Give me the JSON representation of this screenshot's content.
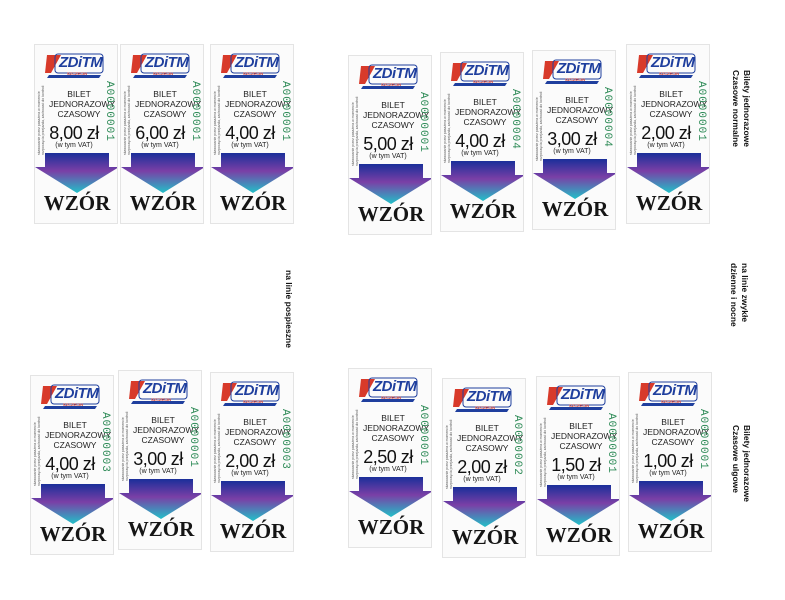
{
  "ticket_common": {
    "brand": "ZDiTM",
    "brand_sub": "SZCZECIN",
    "title_lines": [
      "BILET",
      "JEDNORAZOWY",
      "CZASOWY"
    ],
    "vat_note": "(w tym VAT)",
    "watermark": "WZÓR",
    "side_note": "skasowanie przez pasażera w momencie rozpoczęcia przejazdu, zachować do kontroli"
  },
  "colors": {
    "brand_blue": "#1f3f9e",
    "brand_red": "#d83a2a",
    "serial_green": "#2e8b57",
    "arrow_top": "#1a2f9a",
    "arrow_mid": "#7a3fa6",
    "arrow_bottom": "#22c0c8"
  },
  "tickets": [
    {
      "price": "8,00 zł",
      "serial": "A0000001"
    },
    {
      "price": "6,00 zł",
      "serial": "A0000001"
    },
    {
      "price": "4,00 zł",
      "serial": "A0000001"
    },
    {
      "price": "5,00 zł",
      "serial": "A0000001"
    },
    {
      "price": "4,00 zł",
      "serial": "A0000004"
    },
    {
      "price": "3,00 zł",
      "serial": "A0000004"
    },
    {
      "price": "2,00 zł",
      "serial": "A0000001"
    },
    {
      "price": "4,00 zł",
      "serial": "A0000003"
    },
    {
      "price": "3,00 zł",
      "serial": "A0000001"
    },
    {
      "price": "2,00 zł",
      "serial": "A0000003"
    },
    {
      "price": "2,50 zł",
      "serial": "A0000001"
    },
    {
      "price": "2,00 zł",
      "serial": "A0000002"
    },
    {
      "price": "1,50 zł",
      "serial": "A0000001"
    },
    {
      "price": "1,00 zł",
      "serial": "A0000001"
    }
  ],
  "labels": {
    "normal_line1": "Bilety jednorazowe",
    "normal_line2": "Czasowe normalne",
    "express": "na linie pospieszne",
    "regular_line1": "na linie zwykłe",
    "regular_line2": "dzienne i nocne",
    "reduced_line1": "Bilety jednorazowe",
    "reduced_line2": "Czasowe ulgowe"
  }
}
